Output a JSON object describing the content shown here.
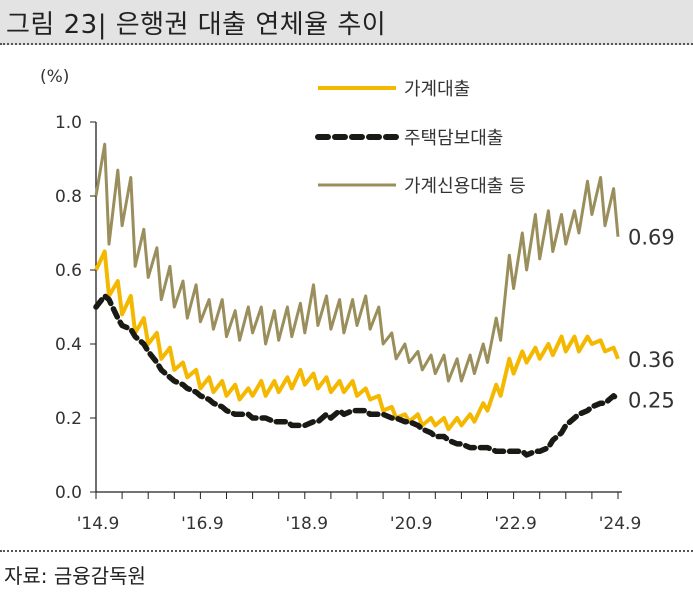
{
  "title": "그림 23| 은행권 대출 연체율 추이",
  "source": "자료: 금융감독원",
  "chart_data": {
    "type": "line",
    "title": "은행권 대출 연체율 추이",
    "ylabel": "(%)",
    "xlabel": "",
    "ylim": [
      0,
      1.0
    ],
    "yticks": [
      "0.0",
      "0.2",
      "0.4",
      "0.6",
      "0.8",
      "1.0"
    ],
    "ytick_values": [
      0,
      0.2,
      0.4,
      0.6,
      0.8,
      1.0
    ],
    "xlim_months": [
      0,
      120
    ],
    "x_start": "2014.9",
    "x_unit": "months since 2014.9; quarter_end at months 0,3,...,120; peak at months 2,5,...,119",
    "xticks": [
      "'14.9",
      "'16.9",
      "'18.9",
      "'20.9",
      "'22.9",
      "'24.9"
    ],
    "xtick_months": [
      0,
      24,
      48,
      72,
      96,
      120
    ],
    "minor_tick_every_months": 6,
    "legend_position": "top-center",
    "series": [
      {
        "name": "가계대출",
        "color": "#f5b800",
        "style": "solid",
        "end_label": "0.36",
        "quarter_end": [
          0.6,
          0.53,
          0.48,
          0.43,
          0.4,
          0.36,
          0.33,
          0.31,
          0.28,
          0.27,
          0.26,
          0.25,
          0.26,
          0.26,
          0.27,
          0.28,
          0.29,
          0.28,
          0.27,
          0.27,
          0.26,
          0.25,
          0.22,
          0.2,
          0.19,
          0.18,
          0.18,
          0.17,
          0.18,
          0.19,
          0.22,
          0.26,
          0.32,
          0.35,
          0.36,
          0.37,
          0.38,
          0.38,
          0.4,
          0.38,
          0.36
        ],
        "peak": [
          0.65,
          0.57,
          0.53,
          0.47,
          0.43,
          0.39,
          0.35,
          0.33,
          0.31,
          0.3,
          0.29,
          0.28,
          0.3,
          0.3,
          0.31,
          0.33,
          0.32,
          0.31,
          0.3,
          0.3,
          0.28,
          0.26,
          0.23,
          0.21,
          0.21,
          0.2,
          0.2,
          0.2,
          0.21,
          0.24,
          0.29,
          0.36,
          0.38,
          0.39,
          0.4,
          0.42,
          0.42,
          0.42,
          0.41,
          0.39
        ]
      },
      {
        "name": "주택담보대출",
        "color": "#1a1a14",
        "style": "dashed",
        "end_label": "0.25",
        "quarter_end": [
          0.5,
          0.52,
          0.45,
          0.42,
          0.38,
          0.33,
          0.3,
          0.28,
          0.26,
          0.24,
          0.22,
          0.21,
          0.2,
          0.2,
          0.19,
          0.18,
          0.18,
          0.19,
          0.2,
          0.21,
          0.22,
          0.21,
          0.21,
          0.2,
          0.19,
          0.17,
          0.15,
          0.14,
          0.13,
          0.12,
          0.12,
          0.11,
          0.11,
          0.1,
          0.11,
          0.14,
          0.18,
          0.21,
          0.23,
          0.24,
          0.25
        ],
        "peak": [
          0.53,
          0.47,
          0.44,
          0.4,
          0.35,
          0.31,
          0.29,
          0.27,
          0.25,
          0.23,
          0.21,
          0.21,
          0.2,
          0.19,
          0.19,
          0.18,
          0.19,
          0.21,
          0.22,
          0.22,
          0.22,
          0.21,
          0.2,
          0.19,
          0.18,
          0.16,
          0.15,
          0.13,
          0.12,
          0.12,
          0.11,
          0.11,
          0.11,
          0.11,
          0.12,
          0.16,
          0.2,
          0.22,
          0.24,
          0.26
        ]
      },
      {
        "name": "가계신용대출 등",
        "color": "#9a8f5c",
        "style": "solid",
        "end_label": "0.69",
        "quarter_end": [
          0.8,
          0.67,
          0.72,
          0.61,
          0.58,
          0.52,
          0.5,
          0.47,
          0.46,
          0.44,
          0.42,
          0.41,
          0.43,
          0.4,
          0.41,
          0.42,
          0.43,
          0.45,
          0.44,
          0.43,
          0.45,
          0.44,
          0.4,
          0.36,
          0.35,
          0.33,
          0.32,
          0.3,
          0.3,
          0.32,
          0.35,
          0.41,
          0.55,
          0.6,
          0.63,
          0.65,
          0.67,
          0.7,
          0.75,
          0.72,
          0.69
        ],
        "peak": [
          0.94,
          0.87,
          0.85,
          0.71,
          0.66,
          0.61,
          0.57,
          0.56,
          0.52,
          0.52,
          0.49,
          0.5,
          0.5,
          0.49,
          0.5,
          0.51,
          0.56,
          0.53,
          0.52,
          0.52,
          0.53,
          0.5,
          0.43,
          0.4,
          0.38,
          0.37,
          0.37,
          0.36,
          0.37,
          0.4,
          0.47,
          0.64,
          0.7,
          0.75,
          0.76,
          0.75,
          0.76,
          0.84,
          0.85,
          0.82
        ]
      }
    ]
  }
}
